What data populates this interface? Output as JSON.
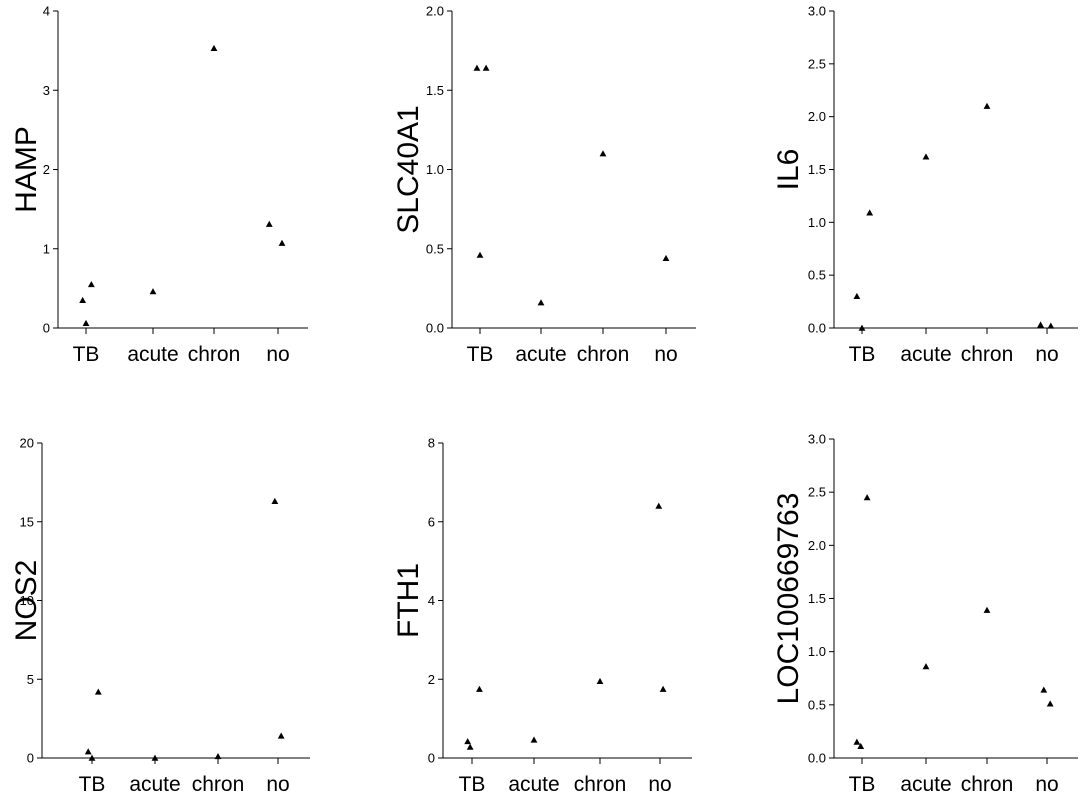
{
  "chart_data": [
    {
      "type": "scatter",
      "ylabel": "HAMP",
      "categories": [
        "TB",
        "acute",
        "chron",
        "no"
      ],
      "ylim": [
        0,
        4
      ],
      "yticks": [
        "0",
        "1",
        "2",
        "3",
        "4"
      ],
      "points": [
        {
          "category": "TB",
          "offset": -0.05,
          "y": 0.35
        },
        {
          "category": "TB",
          "offset": 0.0,
          "y": 0.06
        },
        {
          "category": "TB",
          "offset": 0.08,
          "y": 0.55
        },
        {
          "category": "acute",
          "offset": 0.0,
          "y": 0.46
        },
        {
          "category": "chron",
          "offset": 0.0,
          "y": 3.53
        },
        {
          "category": "no",
          "offset": -0.13,
          "y": 1.31
        },
        {
          "category": "no",
          "offset": 0.06,
          "y": 1.07
        }
      ]
    },
    {
      "type": "scatter",
      "ylabel": "SLC40A1",
      "categories": [
        "TB",
        "acute",
        "chron",
        "no"
      ],
      "ylim": [
        0,
        2.0
      ],
      "yticks": [
        "0.0",
        "0.5",
        "1.0",
        "1.5",
        "2.0"
      ],
      "points": [
        {
          "category": "TB",
          "offset": -0.05,
          "y": 1.64
        },
        {
          "category": "TB",
          "offset": 0.1,
          "y": 1.64
        },
        {
          "category": "TB",
          "offset": 0.0,
          "y": 0.46
        },
        {
          "category": "acute",
          "offset": 0.0,
          "y": 0.16
        },
        {
          "category": "chron",
          "offset": 0.0,
          "y": 1.1
        },
        {
          "category": "no",
          "offset": 0.0,
          "y": 0.44
        }
      ]
    },
    {
      "type": "scatter",
      "ylabel": "IL6",
      "categories": [
        "TB",
        "acute",
        "chron",
        "no"
      ],
      "ylim": [
        0,
        3.0
      ],
      "yticks": [
        "0.0",
        "0.5",
        "1.0",
        "1.5",
        "2.0",
        "2.5",
        "3.0"
      ],
      "points": [
        {
          "category": "TB",
          "offset": -0.08,
          "y": 0.3
        },
        {
          "category": "TB",
          "offset": 0.0,
          "y": 0.0
        },
        {
          "category": "TB",
          "offset": 0.12,
          "y": 1.09
        },
        {
          "category": "acute",
          "offset": 0.0,
          "y": 1.62
        },
        {
          "category": "chron",
          "offset": 0.0,
          "y": 2.1
        },
        {
          "category": "no",
          "offset": -0.1,
          "y": 0.03
        },
        {
          "category": "no",
          "offset": 0.06,
          "y": 0.02
        }
      ]
    },
    {
      "type": "scatter",
      "ylabel": "NOS2",
      "categories": [
        "TB",
        "acute",
        "chron",
        "no"
      ],
      "ylim": [
        0,
        20
      ],
      "yticks": [
        "0",
        "5",
        "10",
        "15",
        "20"
      ],
      "points": [
        {
          "category": "TB",
          "offset": -0.06,
          "y": 0.4
        },
        {
          "category": "TB",
          "offset": 0.0,
          "y": 0.0
        },
        {
          "category": "TB",
          "offset": 0.1,
          "y": 4.2
        },
        {
          "category": "acute",
          "offset": 0.0,
          "y": 0.0
        },
        {
          "category": "chron",
          "offset": 0.0,
          "y": 0.1
        },
        {
          "category": "no",
          "offset": -0.05,
          "y": 16.3
        },
        {
          "category": "no",
          "offset": 0.05,
          "y": 1.4
        }
      ]
    },
    {
      "type": "scatter",
      "ylabel": "FTH1",
      "categories": [
        "TB",
        "acute",
        "chron",
        "no"
      ],
      "ylim": [
        0,
        8
      ],
      "yticks": [
        "0",
        "2",
        "4",
        "6",
        "8"
      ],
      "points": [
        {
          "category": "TB",
          "offset": -0.07,
          "y": 0.42
        },
        {
          "category": "TB",
          "offset": -0.03,
          "y": 0.28
        },
        {
          "category": "TB",
          "offset": 0.12,
          "y": 1.75
        },
        {
          "category": "acute",
          "offset": 0.0,
          "y": 0.46
        },
        {
          "category": "chron",
          "offset": 0.0,
          "y": 1.95
        },
        {
          "category": "no",
          "offset": -0.02,
          "y": 6.4
        },
        {
          "category": "no",
          "offset": 0.05,
          "y": 1.75
        }
      ]
    },
    {
      "type": "scatter",
      "ylabel": "LOC100669763",
      "categories": [
        "TB",
        "acute",
        "chron",
        "no"
      ],
      "ylim": [
        0,
        3.0
      ],
      "yticks": [
        "0.0",
        "0.5",
        "1.0",
        "1.5",
        "2.0",
        "2.5",
        "3.0"
      ],
      "points": [
        {
          "category": "TB",
          "offset": -0.08,
          "y": 0.15
        },
        {
          "category": "TB",
          "offset": -0.02,
          "y": 0.11
        },
        {
          "category": "TB",
          "offset": 0.08,
          "y": 2.45
        },
        {
          "category": "acute",
          "offset": 0.0,
          "y": 0.86
        },
        {
          "category": "chron",
          "offset": 0.0,
          "y": 1.39
        },
        {
          "category": "no",
          "offset": -0.05,
          "y": 0.64
        },
        {
          "category": "no",
          "offset": 0.05,
          "y": 0.51
        }
      ]
    }
  ]
}
